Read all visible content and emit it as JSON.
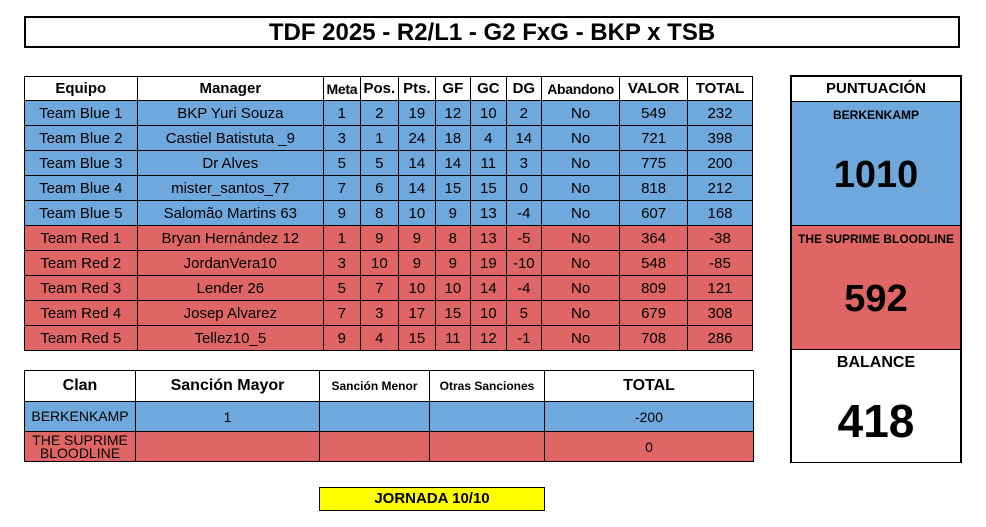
{
  "title": "TDF 2025 - R2/L1 - G2 FxG - BKP x TSB",
  "main_table": {
    "headers": [
      "Equipo",
      "Manager",
      "Meta",
      "Pos.",
      "Pts.",
      "GF",
      "GC",
      "DG",
      "Abandono",
      "VALOR",
      "TOTAL"
    ],
    "rows": [
      [
        "Team Blue 1",
        "BKP Yuri Souza",
        "1",
        "2",
        "19",
        "12",
        "10",
        "2",
        "No",
        "549",
        "232"
      ],
      [
        "Team Blue 2",
        "Castiel Batistuta _9",
        "3",
        "1",
        "24",
        "18",
        "4",
        "14",
        "No",
        "721",
        "398"
      ],
      [
        "Team Blue 3",
        "Dr Alves",
        "5",
        "5",
        "14",
        "14",
        "11",
        "3",
        "No",
        "775",
        "200"
      ],
      [
        "Team Blue 4",
        "mister_santos_77",
        "7",
        "6",
        "14",
        "15",
        "15",
        "0",
        "No",
        "818",
        "212"
      ],
      [
        "Team Blue 5",
        "Salomão Martins 63",
        "9",
        "8",
        "10",
        "9",
        "13",
        "-4",
        "No",
        "607",
        "168"
      ],
      [
        "Team Red 1",
        "Bryan Hernández 12",
        "1",
        "9",
        "9",
        "8",
        "13",
        "-5",
        "No",
        "364",
        "-38"
      ],
      [
        "Team Red 2",
        "JordanVera10",
        "3",
        "10",
        "9",
        "9",
        "19",
        "-10",
        "No",
        "548",
        "-85"
      ],
      [
        "Team Red 3",
        "Lender 26",
        "5",
        "7",
        "10",
        "10",
        "14",
        "-4",
        "No",
        "809",
        "121"
      ],
      [
        "Team Red 4",
        "Josep Alvarez",
        "7",
        "3",
        "17",
        "15",
        "10",
        "5",
        "No",
        "679",
        "308"
      ],
      [
        "Team Red 5",
        "Tellez10_5",
        "9",
        "4",
        "15",
        "11",
        "12",
        "-1",
        "No",
        "708",
        "286"
      ]
    ]
  },
  "sanctions_table": {
    "headers": [
      "Clan",
      "Sanción Mayor",
      "Sanción Menor",
      "Otras Sanciones",
      "TOTAL"
    ],
    "rows": [
      [
        "BERKENKAMP",
        "1",
        "",
        "",
        "-200"
      ],
      [
        "THE SUPRIME BLOODLINE",
        "",
        "",
        "",
        "0"
      ]
    ]
  },
  "score_panel": {
    "header": "PUNTUACIÓN",
    "blue_clan": "BERKENKAMP",
    "blue_score": "1010",
    "red_clan": "THE SUPRIME BLOODLINE",
    "red_score": "592",
    "balance_label": "BALANCE",
    "balance_value": "418"
  },
  "jornada": "JORNADA 10/10",
  "colors": {
    "blue": "#6fa8dc",
    "red": "#e06666",
    "jornada_bg": "#ffff00"
  }
}
